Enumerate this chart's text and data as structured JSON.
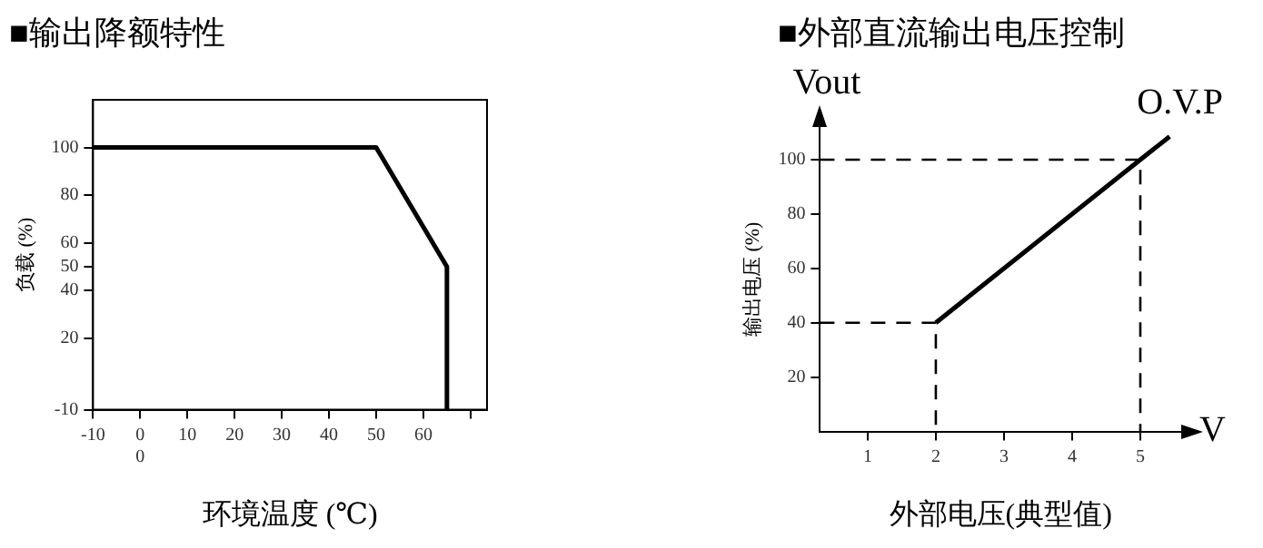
{
  "chart_data": [
    {
      "type": "line",
      "title": "■输出降额特性",
      "xlabel": "环境温度 (℃)",
      "ylabel": "负载 (%)",
      "xlim": [
        -10,
        73.5
      ],
      "ylim": [
        -10,
        120
      ],
      "xticks": [
        -10,
        {
          "value": 0,
          "label": "0\n0"
        },
        10,
        20,
        30,
        40,
        50,
        60,
        {
          "value": 70,
          "label": null
        }
      ],
      "yticks": [
        -10,
        20,
        40,
        50,
        60,
        80,
        100
      ],
      "series": [
        {
          "color": "#000000",
          "x": [
            -10,
            50,
            65,
            65
          ],
          "values": [
            100,
            100,
            50,
            -10
          ]
        }
      ],
      "grid": false,
      "legend": false,
      "marker": "none",
      "line_style": "solid"
    },
    {
      "type": "line",
      "title": "■外部直流输出电压控制",
      "xlabel": "外部电压(典型值)",
      "ylabel": "输出电压 (%)",
      "xlim": [
        0.3,
        5.6
      ],
      "ylim": [
        0,
        112
      ],
      "xticks": [
        1,
        2,
        3,
        4,
        5
      ],
      "yticks": [
        20,
        40,
        60,
        80,
        100
      ],
      "series": [
        {
          "color": "#000000",
          "x": [
            2,
            5,
            5.43
          ],
          "values": [
            40,
            100,
            108.5
          ]
        },
        {
          "color": "#000000",
          "x": [
            0.3,
            2,
            2
          ],
          "values": [
            40,
            40,
            0
          ],
          "line_style": "dashed"
        },
        {
          "color": "#000000",
          "x": [
            0.3,
            5,
            5
          ],
          "values": [
            100,
            100,
            0
          ],
          "line_style": "dashed"
        }
      ],
      "annotations": [
        "Vout",
        "V",
        {
          "text": "O.V.P",
          "x": 5.43,
          "y": 108.5
        }
      ],
      "grid": false,
      "legend": false,
      "marker": "none",
      "line_style": "solid"
    }
  ]
}
